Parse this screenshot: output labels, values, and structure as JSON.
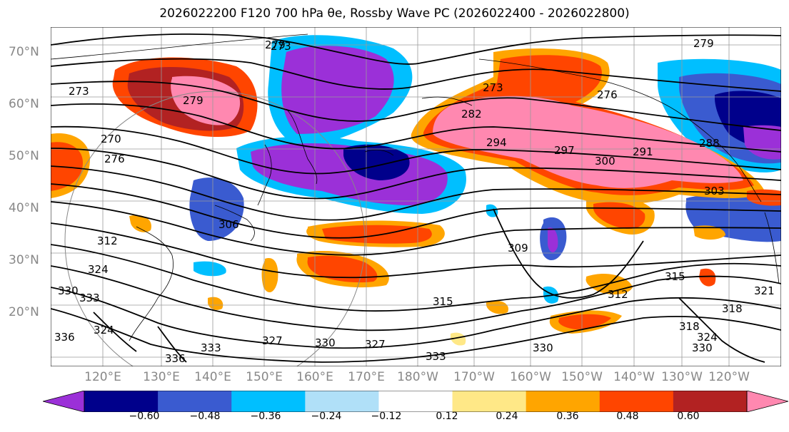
{
  "title": "2026022200 F120 700 hPa θe, Rossby Wave PC (2026022400 - 2026022800)",
  "lat_labels": [
    "70°N",
    "60°N",
    "50°N",
    "40°N",
    "30°N",
    "20°N"
  ],
  "lon_labels": [
    "120°E",
    "130°E",
    "140°E",
    "150°E",
    "160°E",
    "170°E",
    "180°W",
    "170°W",
    "160°W",
    "150°W",
    "140°W",
    "130°W",
    "120°W"
  ],
  "contour_labels": [
    "273",
    "279",
    "273",
    "276",
    "279",
    "270",
    "279",
    "273",
    "276",
    "282",
    "294",
    "297",
    "300",
    "291",
    "288",
    "303",
    "306",
    "309",
    "312",
    "315",
    "318",
    "321",
    "324",
    "327",
    "330",
    "333",
    "336",
    "330",
    "333",
    "336",
    "333",
    "324",
    "330",
    "327",
    "318",
    "324",
    "330",
    "315",
    "312"
  ],
  "colorbar": {
    "ticks": [
      "−0.60",
      "−0.48",
      "−0.36",
      "−0.24",
      "−0.12",
      "0.12",
      "0.24",
      "0.36",
      "0.48",
      "0.60"
    ],
    "colors": [
      "#9b30d8",
      "#00008b",
      "#3a5bd0",
      "#00bfff",
      "#b0e0f8",
      "#ffffff",
      "#ffe887",
      "#ffa500",
      "#ff4500",
      "#b22222",
      "#ff88b0"
    ]
  }
}
